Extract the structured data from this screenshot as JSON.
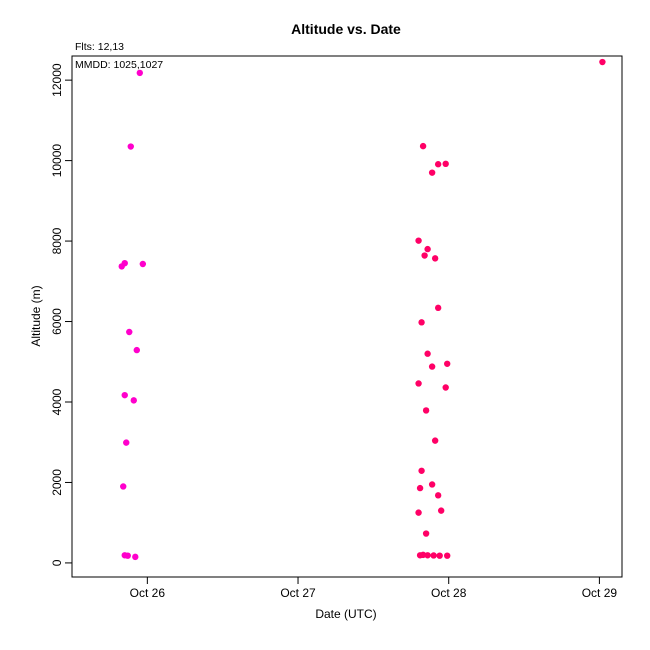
{
  "chart_data": {
    "type": "scatter",
    "title": "Altitude  vs. Date",
    "xlabel": "Date (UTC)",
    "ylabel": "Altitude (m)",
    "annotations": [
      "Flts: 12,13",
      "MMDD: 1025,1027"
    ],
    "x_ticks": [
      "Oct 26",
      "Oct 27",
      "Oct 28",
      "Oct 29"
    ],
    "x_tick_values": [
      26,
      27,
      28,
      29
    ],
    "y_ticks": [
      "0",
      "2000",
      "4000",
      "6000",
      "8000",
      "10000",
      "12000"
    ],
    "y_tick_values": [
      0,
      2000,
      4000,
      6000,
      8000,
      10000,
      12000
    ],
    "xlim": [
      25.5,
      29.15
    ],
    "ylim": [
      -350,
      12600
    ],
    "grid": false,
    "series": [
      {
        "color": "#ff00cc",
        "points": [
          {
            "x": 25.95,
            "y": 12180
          },
          {
            "x": 25.89,
            "y": 10350
          },
          {
            "x": 25.85,
            "y": 7450
          },
          {
            "x": 25.83,
            "y": 7370
          },
          {
            "x": 25.97,
            "y": 7430
          },
          {
            "x": 25.88,
            "y": 5740
          },
          {
            "x": 25.93,
            "y": 5290
          },
          {
            "x": 25.85,
            "y": 4170
          },
          {
            "x": 25.91,
            "y": 4040
          },
          {
            "x": 25.86,
            "y": 2990
          },
          {
            "x": 25.84,
            "y": 1900
          },
          {
            "x": 25.85,
            "y": 190
          },
          {
            "x": 25.87,
            "y": 180
          },
          {
            "x": 25.92,
            "y": 150
          }
        ]
      },
      {
        "color": "#ff0066",
        "points": [
          {
            "x": 29.02,
            "y": 12450
          },
          {
            "x": 27.83,
            "y": 10360
          },
          {
            "x": 27.93,
            "y": 9910
          },
          {
            "x": 27.98,
            "y": 9920
          },
          {
            "x": 27.89,
            "y": 9700
          },
          {
            "x": 27.8,
            "y": 8010
          },
          {
            "x": 27.86,
            "y": 7800
          },
          {
            "x": 27.84,
            "y": 7640
          },
          {
            "x": 27.91,
            "y": 7570
          },
          {
            "x": 27.93,
            "y": 6340
          },
          {
            "x": 27.82,
            "y": 5980
          },
          {
            "x": 27.86,
            "y": 5200
          },
          {
            "x": 27.99,
            "y": 4950
          },
          {
            "x": 27.89,
            "y": 4880
          },
          {
            "x": 27.8,
            "y": 4460
          },
          {
            "x": 27.98,
            "y": 4360
          },
          {
            "x": 27.85,
            "y": 3790
          },
          {
            "x": 27.91,
            "y": 3040
          },
          {
            "x": 27.82,
            "y": 2290
          },
          {
            "x": 27.89,
            "y": 1950
          },
          {
            "x": 27.81,
            "y": 1860
          },
          {
            "x": 27.93,
            "y": 1680
          },
          {
            "x": 27.95,
            "y": 1300
          },
          {
            "x": 27.8,
            "y": 1250
          },
          {
            "x": 27.85,
            "y": 730
          },
          {
            "x": 27.81,
            "y": 190
          },
          {
            "x": 27.83,
            "y": 200
          },
          {
            "x": 27.86,
            "y": 190
          },
          {
            "x": 27.9,
            "y": 185
          },
          {
            "x": 27.94,
            "y": 180
          },
          {
            "x": 27.99,
            "y": 180
          }
        ]
      }
    ]
  }
}
